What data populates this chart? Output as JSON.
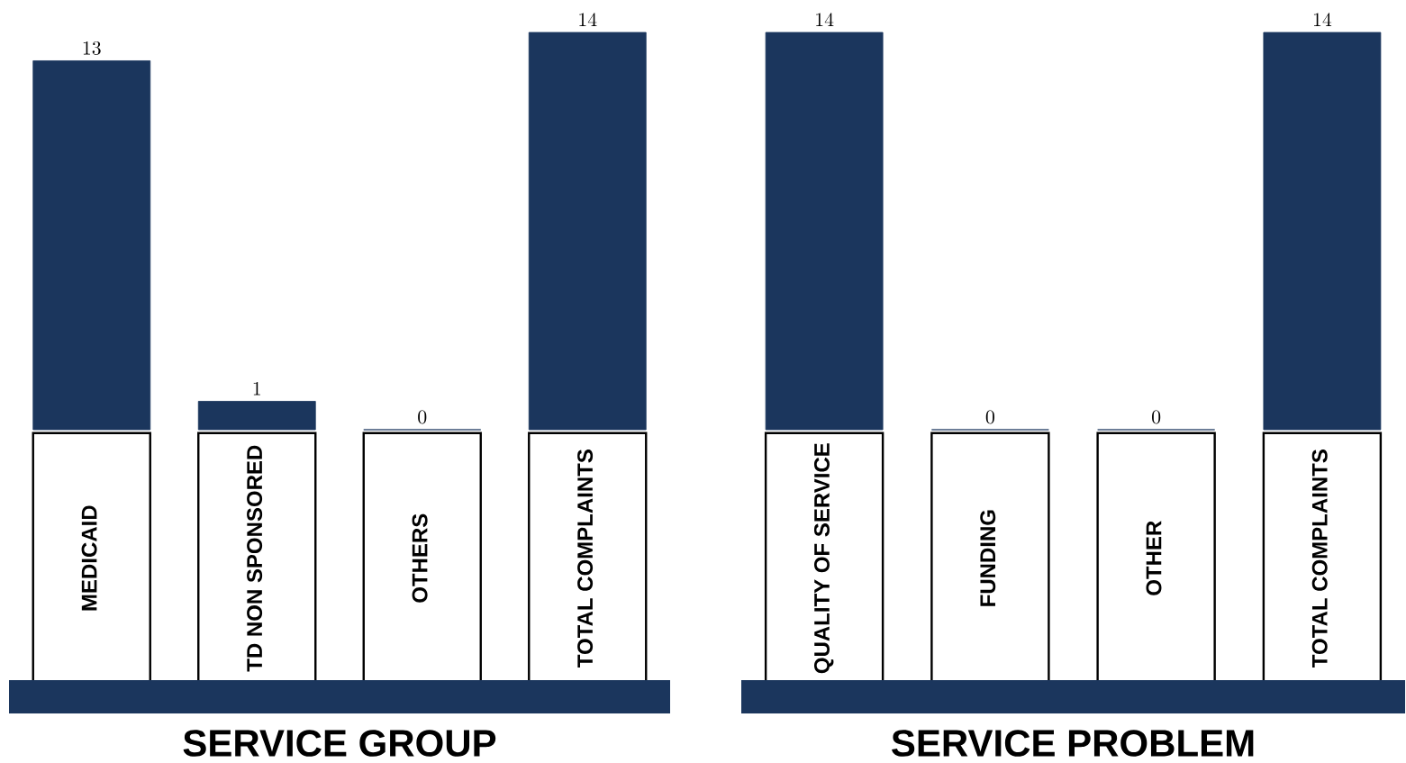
{
  "chart_data": [
    {
      "type": "bar",
      "categories": [
        "MEDICAID",
        "TD NON SPONSORED",
        "OTHERS",
        "TOTAL COMPLAINTS"
      ],
      "values": [
        13,
        1,
        0,
        14
      ],
      "color": "#1b365d",
      "data_labels": true,
      "xlabel": "SERVICE GROUP"
    },
    {
      "type": "bar",
      "categories": [
        "QUALITY OF SERVICE",
        "FUNDING",
        "OTHER",
        "TOTAL COMPLAINTS"
      ],
      "values": [
        14,
        0,
        0,
        14
      ],
      "color": "#1b365d",
      "data_labels": true,
      "xlabel": "SERVICE PROBLEM"
    }
  ]
}
